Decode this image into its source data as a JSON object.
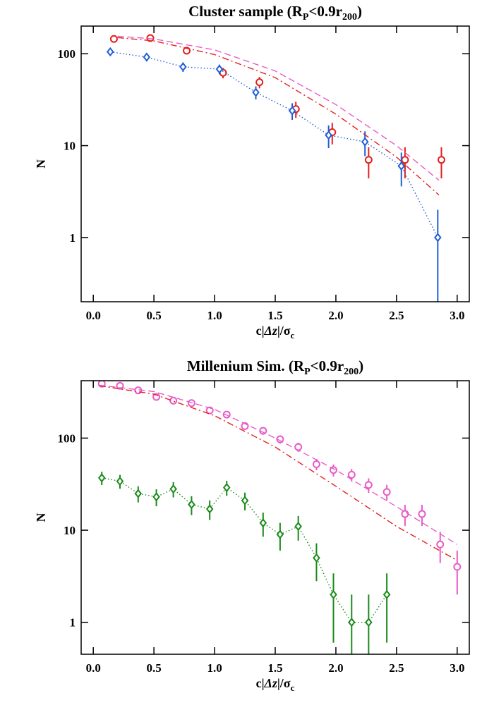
{
  "chart_data": [
    {
      "type": "scatter",
      "title": [
        "Cluster sample (R",
        "P",
        "<0.9r",
        "200",
        ")"
      ],
      "xlabel": [
        "c|",
        "Δz",
        "|/σ",
        "c"
      ],
      "ylabel": "N",
      "xlim": [
        -0.1,
        3.1
      ],
      "ylim": [
        0.2,
        200
      ],
      "ylog": true,
      "xticks": [
        {
          "value": 0,
          "label": "0.0"
        },
        {
          "value": 0.5,
          "label": "0.5"
        },
        {
          "value": 1,
          "label": "1.0"
        },
        {
          "value": 1.5,
          "label": "1.5"
        },
        {
          "value": 2,
          "label": "2.0"
        },
        {
          "value": 2.5,
          "label": "2.5"
        },
        {
          "value": 3,
          "label": "3.0"
        }
      ],
      "yticks": [
        1,
        10,
        100
      ],
      "series": [
        {
          "color": "#e3201b",
          "marker": "circle",
          "line": "none",
          "x": [
            0.17,
            0.47,
            0.77,
            1.07,
            1.37,
            1.67,
            1.97,
            2.27,
            2.57,
            2.87
          ],
          "values": [
            145,
            148,
            108,
            62,
            49,
            25,
            14,
            7,
            7,
            7
          ],
          "errors": [
            12,
            12,
            10,
            8,
            7,
            5,
            3.7,
            2.6,
            2.6,
            2.6
          ]
        },
        {
          "color": "#1f5fd6",
          "marker": "diamond",
          "line": "dotted",
          "x": [
            0.14,
            0.44,
            0.74,
            1.04,
            1.34,
            1.64,
            1.94,
            2.24,
            2.54,
            2.84
          ],
          "values": [
            105,
            92,
            72,
            68,
            38,
            24,
            13,
            11,
            6,
            1
          ],
          "errors": [
            10,
            9.6,
            8.5,
            8.2,
            6.2,
            4.9,
            3.6,
            3.3,
            2.4,
            1
          ]
        },
        {
          "color": "#e3201b",
          "marker": "none",
          "line": "dashdot",
          "x": [
            0.2,
            0.5,
            1.0,
            1.5,
            2.0,
            2.5,
            2.85
          ],
          "values": [
            150,
            138,
            98,
            55,
            22,
            7.5,
            2.9
          ]
        },
        {
          "color": "#e85cc8",
          "marker": "none",
          "line": "dashed",
          "x": [
            0.2,
            0.5,
            1.0,
            1.5,
            2.0,
            2.5,
            2.85
          ],
          "values": [
            155,
            145,
            110,
            65,
            28,
            10,
            4.2
          ]
        }
      ]
    },
    {
      "type": "scatter",
      "title": [
        "Millenium Sim. (R",
        "P",
        "<0.9r",
        "200",
        ")"
      ],
      "xlabel": [
        "c|",
        "Δz",
        "|/σ",
        "c"
      ],
      "ylabel": "N",
      "xlim": [
        -0.1,
        3.1
      ],
      "ylim": [
        0.45,
        420
      ],
      "ylog": true,
      "xticks": [
        {
          "value": 0,
          "label": "0.0"
        },
        {
          "value": 0.5,
          "label": "0.5"
        },
        {
          "value": 1,
          "label": "1.0"
        },
        {
          "value": 1.5,
          "label": "1.5"
        },
        {
          "value": 2,
          "label": "2.0"
        },
        {
          "value": 2.5,
          "label": "2.5"
        },
        {
          "value": 3,
          "label": "3.0"
        }
      ],
      "yticks": [
        1,
        10,
        100
      ],
      "series": [
        {
          "color": "#e85cc8",
          "marker": "circle",
          "line": "none",
          "x": [
            0.07,
            0.22,
            0.37,
            0.52,
            0.66,
            0.81,
            0.96,
            1.1,
            1.25,
            1.4,
            1.54,
            1.69,
            1.84,
            1.98,
            2.13,
            2.27,
            2.42,
            2.57,
            2.71,
            2.86,
            3.0
          ],
          "values": [
            390,
            370,
            330,
            280,
            255,
            240,
            200,
            180,
            135,
            120,
            97,
            80,
            52,
            45,
            40,
            31,
            26,
            15,
            15,
            7,
            4
          ],
          "errors": [
            20,
            19,
            18,
            17,
            16,
            15,
            14,
            13,
            12,
            11,
            10,
            9,
            7.2,
            6.7,
            6.3,
            5.6,
            5.1,
            3.9,
            3.9,
            2.6,
            2
          ]
        },
        {
          "color": "#1a8a1a",
          "marker": "diamond",
          "line": "dotted",
          "x": [
            0.07,
            0.22,
            0.37,
            0.52,
            0.66,
            0.81,
            0.96,
            1.1,
            1.25,
            1.4,
            1.54,
            1.69,
            1.84,
            1.98,
            2.13,
            2.27,
            2.42
          ],
          "values": [
            37,
            34,
            25,
            23,
            28,
            19,
            17,
            29,
            21,
            12,
            9,
            11,
            5,
            2,
            1,
            1,
            2
          ],
          "errors": [
            6.1,
            5.8,
            5,
            4.8,
            5.3,
            4.4,
            4.1,
            5.4,
            4.6,
            3.5,
            3,
            3.3,
            2.2,
            1.4,
            1,
            1,
            1.4
          ]
        },
        {
          "color": "#e3201b",
          "marker": "none",
          "line": "dashdot",
          "x": [
            0.05,
            0.5,
            1.0,
            1.5,
            2.0,
            2.5,
            3.0
          ],
          "values": [
            370,
            300,
            175,
            80,
            30,
            11,
            4.7
          ]
        },
        {
          "color": "#e85cc8",
          "marker": "none",
          "line": "dashed",
          "x": [
            0.05,
            0.5,
            1.0,
            1.5,
            2.0,
            2.5,
            3.0
          ],
          "values": [
            375,
            320,
            205,
            100,
            45,
            18,
            7
          ]
        }
      ]
    }
  ]
}
